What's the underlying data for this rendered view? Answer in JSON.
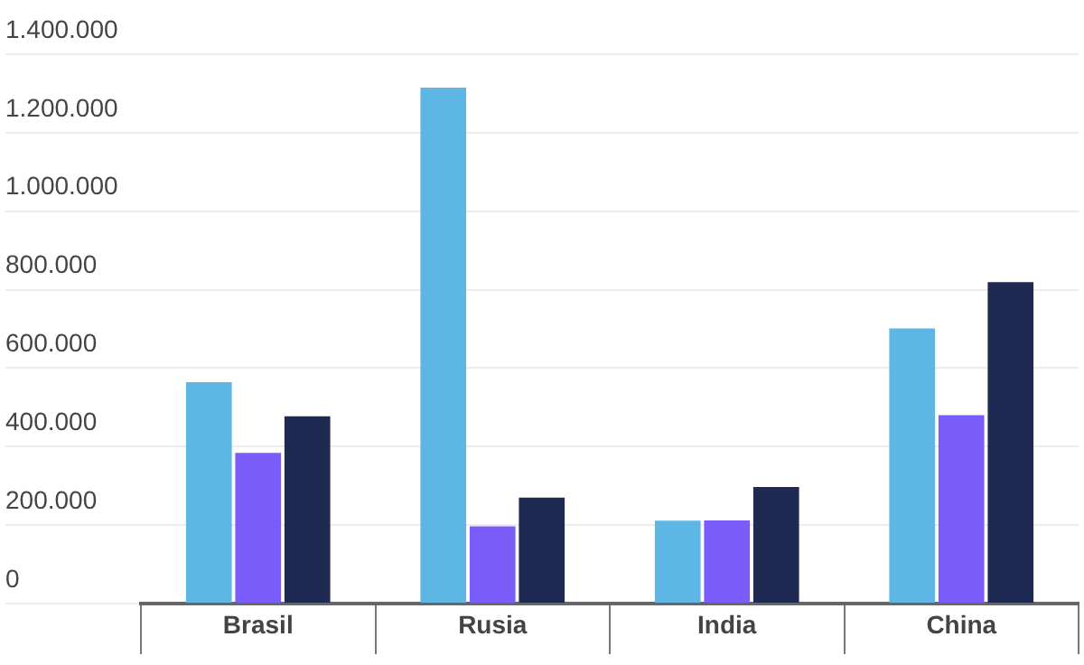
{
  "chart_data": {
    "type": "bar",
    "categories": [
      "Brasil",
      "Rusia",
      "India",
      "China"
    ],
    "series": [
      {
        "color": "#5db6e4",
        "values": [
          564000,
          1315000,
          211000,
          701000
        ]
      },
      {
        "color": "#7a5cfa",
        "values": [
          384000,
          197000,
          212000,
          480000
        ]
      },
      {
        "color": "#1f2a52",
        "values": [
          477000,
          270000,
          297000,
          819000
        ]
      }
    ],
    "ylim": [
      0,
      1400000
    ],
    "yticks": [
      {
        "value": 0,
        "label": "0"
      },
      {
        "value": 200000,
        "label": "200.000"
      },
      {
        "value": 400000,
        "label": "400.000"
      },
      {
        "value": 600000,
        "label": "600.000"
      },
      {
        "value": 800000,
        "label": "800.000"
      },
      {
        "value": 1000000,
        "label": "1.000.000"
      },
      {
        "value": 1200000,
        "label": "1.200.000"
      },
      {
        "value": 1400000,
        "label": "1.400.000"
      }
    ],
    "grid": "y",
    "legend": false
  }
}
